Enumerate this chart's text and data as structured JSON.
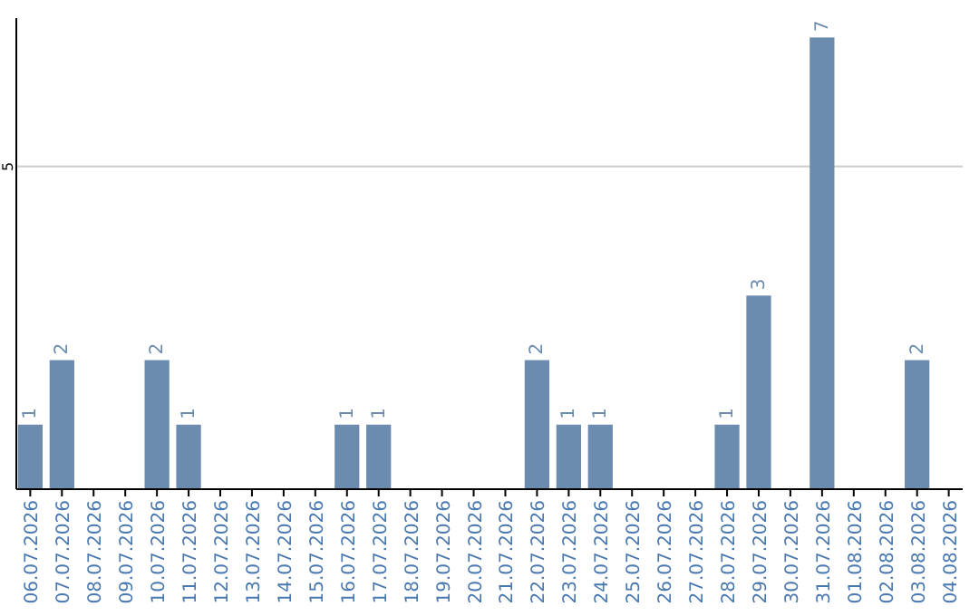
{
  "chart_data": {
    "type": "bar",
    "categories": [
      "06.07.2026",
      "07.07.2026",
      "08.07.2026",
      "09.07.2026",
      "10.07.2026",
      "11.07.2026",
      "12.07.2026",
      "13.07.2026",
      "14.07.2026",
      "15.07.2026",
      "16.07.2026",
      "17.07.2026",
      "18.07.2026",
      "19.07.2026",
      "20.07.2026",
      "21.07.2026",
      "22.07.2026",
      "23.07.2026",
      "24.07.2026",
      "25.07.2026",
      "26.07.2026",
      "27.07.2026",
      "28.07.2026",
      "29.07.2026",
      "30.07.2026",
      "31.07.2026",
      "01.08.2026",
      "02.08.2026",
      "03.08.2026",
      "04.08.2026"
    ],
    "values": [
      1,
      2,
      0,
      0,
      2,
      1,
      0,
      0,
      0,
      0,
      1,
      1,
      0,
      0,
      0,
      0,
      2,
      1,
      1,
      0,
      0,
      0,
      1,
      3,
      0,
      7,
      0,
      0,
      2,
      0
    ],
    "value_labels": [
      "1",
      "2",
      null,
      null,
      "2",
      "1",
      null,
      null,
      null,
      null,
      "1",
      "1",
      null,
      null,
      null,
      null,
      "2",
      "1",
      "1",
      null,
      null,
      null,
      "1",
      "3",
      null,
      "7",
      null,
      null,
      "2",
      null
    ],
    "color": "#6b8cae",
    "ylim": [
      0,
      7.3
    ],
    "yticks": [
      5
    ],
    "grid": "y"
  }
}
